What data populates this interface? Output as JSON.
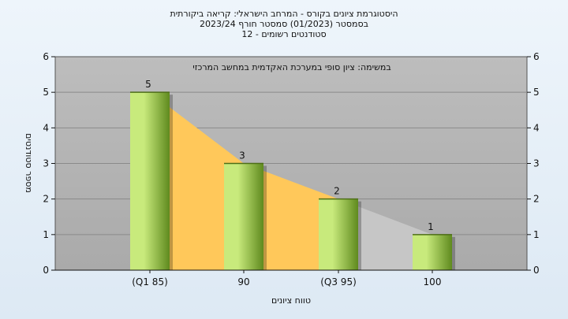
{
  "chart_data": {
    "type": "bar",
    "title_lines": [
      "היסטוגרמת ציונים בקורס - המרחב הישראלי: קריאה ביקורתית",
      "בסמסטר  (01/2023)  סמסטר חורף  2023/24",
      "סטודנטים רשומים - 12"
    ],
    "annotation": "במשימה: ציון סופי במערכת האקדמית במחשב המרכזי",
    "categories": [
      "(Q1 85)",
      "90",
      "(Q3 95)",
      "100"
    ],
    "values": [
      5,
      3,
      2,
      1
    ],
    "data_labels": [
      "5",
      "3",
      "2",
      "1"
    ],
    "xlabel": "טווח ציונים",
    "ylabel": "מספר סטודנטים",
    "ylim": [
      0,
      6
    ],
    "yticks": [
      "0",
      "1",
      "2",
      "3",
      "4",
      "5",
      "6"
    ],
    "grid": true,
    "colors": {
      "plot_bg": "#b3b3b3",
      "bar_light": "#c8ea7c",
      "bar_dark": "#5f8a1e",
      "area_fill": "#ffc85a",
      "area_tail": "#c6c6c6"
    }
  }
}
